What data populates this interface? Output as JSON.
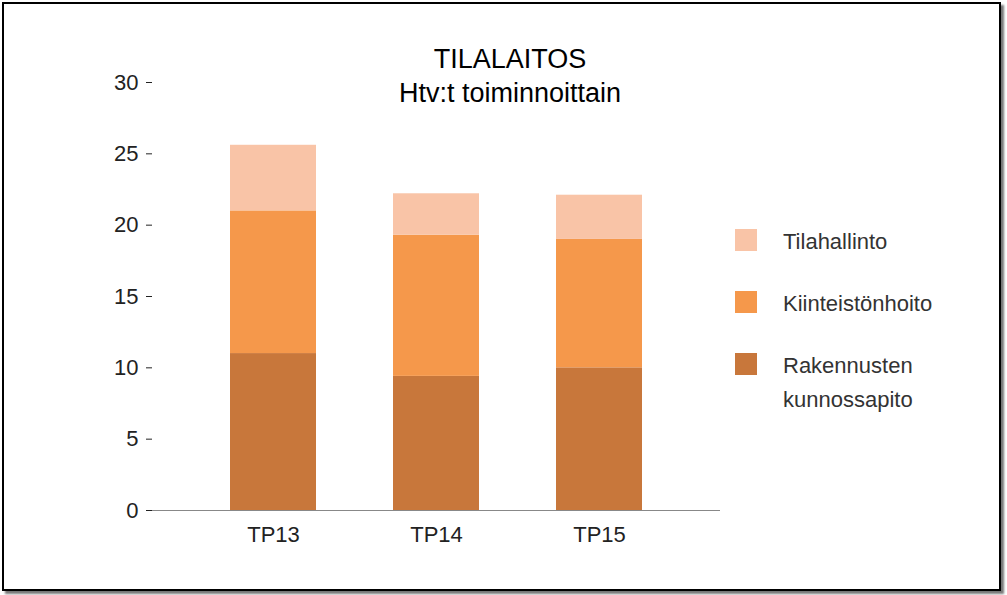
{
  "chart_data": {
    "type": "bar",
    "title": "TILALAITOS",
    "subtitle": "Htv:t toiminnoittain",
    "categories": [
      "TP13",
      "TP14",
      "TP15"
    ],
    "stacked": true,
    "grid": false,
    "legend": "right",
    "series": [
      {
        "name": "Rakennusten kunnossapito",
        "color": "#c8773b",
        "values": [
          11,
          9.4,
          10
        ]
      },
      {
        "name": "Kiinteistönhoito",
        "color": "#f5984b",
        "values": [
          10,
          9.9,
          9
        ]
      },
      {
        "name": "Tilahallinto",
        "color": "#f9c4a7",
        "values": [
          4.6,
          2.9,
          3.1
        ]
      }
    ],
    "ylim": [
      0,
      30
    ],
    "yticks": [
      0,
      5,
      10,
      15,
      20,
      25,
      30
    ]
  }
}
